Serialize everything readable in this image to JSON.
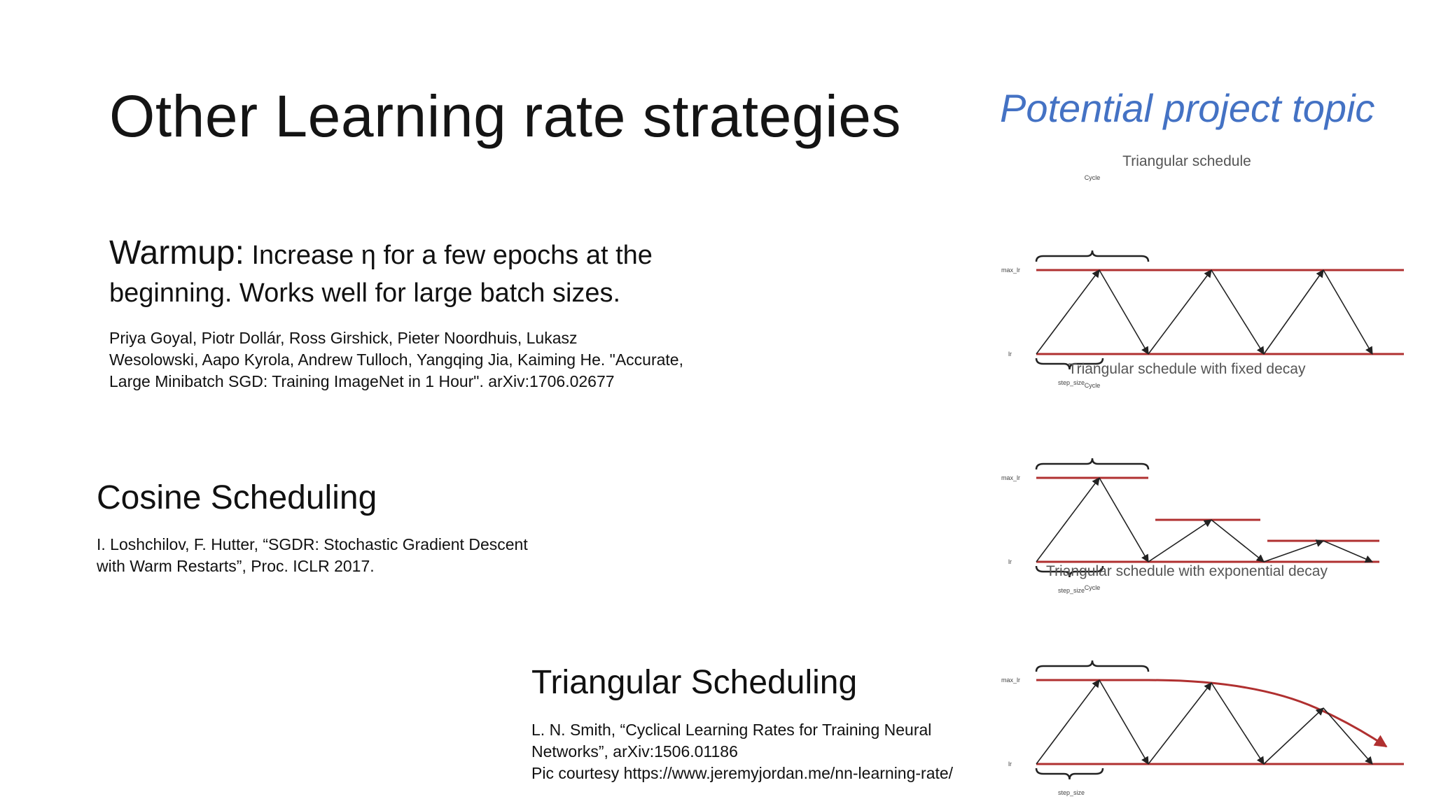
{
  "slide": {
    "title": "Other Learning rate strategies",
    "project_topic": "Potential project topic",
    "accent_color": "#4472c4"
  },
  "warmup": {
    "label": "Warmup:",
    "text_line1": "Increase η for a few epochs at the",
    "text_line2": "beginning. Works well for large batch sizes.",
    "ref_lines": [
      "Priya Goyal, Piotr Dollár, Ross Girshick, Pieter Noordhuis, Lukasz",
      "Wesolowski, Aapo Kyrola, Andrew Tulloch, Yangqing Jia, Kaiming He. \"Accurate,",
      "Large Minibatch SGD: Training ImageNet in 1 Hour\". arXiv:1706.02677"
    ]
  },
  "cosine": {
    "heading": "Cosine Scheduling",
    "ref_lines": [
      "I. Loshchilov, F. Hutter, “SGDR: Stochastic Gradient Descent",
      "with Warm Restarts”, Proc. ICLR 2017."
    ]
  },
  "triangular": {
    "heading": "Triangular Scheduling",
    "ref_lines": [
      "L. N. Smith, “Cyclical Learning Rates for Training Neural",
      "Networks”, arXiv:1506.01186",
      "Pic courtesy https://www.jeremyjordan.me/nn-learning-rate/"
    ]
  },
  "diagrams": {
    "line_color": "#b03030",
    "cycle_label": "Cycle",
    "max_lr_label": "max_lr",
    "lr_label": "lr",
    "step_size_label": "step_size",
    "panels": [
      {
        "title": "Triangular schedule"
      },
      {
        "title": "Triangular schedule with fixed decay"
      },
      {
        "title": "Triangular schedule with exponential decay"
      }
    ]
  }
}
